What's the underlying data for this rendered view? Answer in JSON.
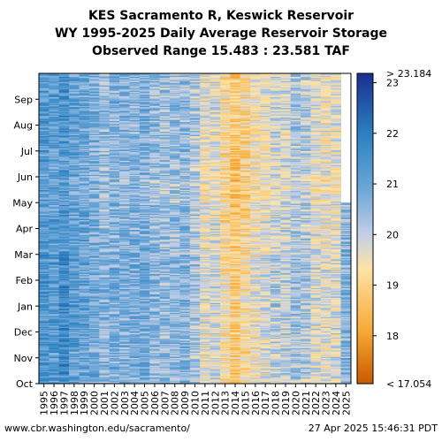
{
  "titles": {
    "line1": "KES Sacramento R, Keswick Reservoir",
    "line2": "WY 1995-2025 Daily Average Reservoir Storage",
    "line3": "Observed Range 15.483 : 23.581 TAF"
  },
  "footer": {
    "left": "www.cbr.washington.edu/sacramento/",
    "right": "27 Apr 2025 15:46:31 PDT"
  },
  "chart_data": {
    "type": "heatmap",
    "x_categories": [
      "1995",
      "1996",
      "1997",
      "1998",
      "1999",
      "2000",
      "2001",
      "2002",
      "2003",
      "2004",
      "2005",
      "2006",
      "2007",
      "2008",
      "2009",
      "2010",
      "2011",
      "2012",
      "2013",
      "2014",
      "2015",
      "2016",
      "2017",
      "2018",
      "2019",
      "2020",
      "2021",
      "2022",
      "2023",
      "2024",
      "2025"
    ],
    "y_categories": [
      "Oct",
      "Nov",
      "Dec",
      "Jan",
      "Feb",
      "Mar",
      "Apr",
      "May",
      "Jun",
      "Jul",
      "Aug",
      "Sep"
    ],
    "colorbar": {
      "ticks": [
        23,
        22,
        21,
        20,
        19,
        18
      ],
      "max_label": "> 23.184",
      "min_label": "< 17.054",
      "range": [
        17.054,
        23.184
      ],
      "colors": [
        "#c85a00",
        "#f7a935",
        "#fde3a6",
        "#c4cfe6",
        "#6fa8d8",
        "#2c82c2",
        "#1a2f8f"
      ]
    },
    "year_typical_storage": [
      21.4,
      21.3,
      21.6,
      21.2,
      21.1,
      20.9,
      20.6,
      20.8,
      20.7,
      20.8,
      20.9,
      20.6,
      20.5,
      20.6,
      20.7,
      20.3,
      19.7,
      19.9,
      19.3,
      18.9,
      19.2,
      19.6,
      19.8,
      20.1,
      20.0,
      20.3,
      20.2,
      19.8,
      19.7,
      19.8,
      20.7
    ],
    "month_offset": [
      -0.05,
      -0.05,
      0.0,
      0.05,
      0.0,
      -0.1,
      -0.15,
      -0.3,
      -0.2,
      -0.15,
      -0.1,
      -0.15
    ],
    "last_year_months_observed": 7
  }
}
